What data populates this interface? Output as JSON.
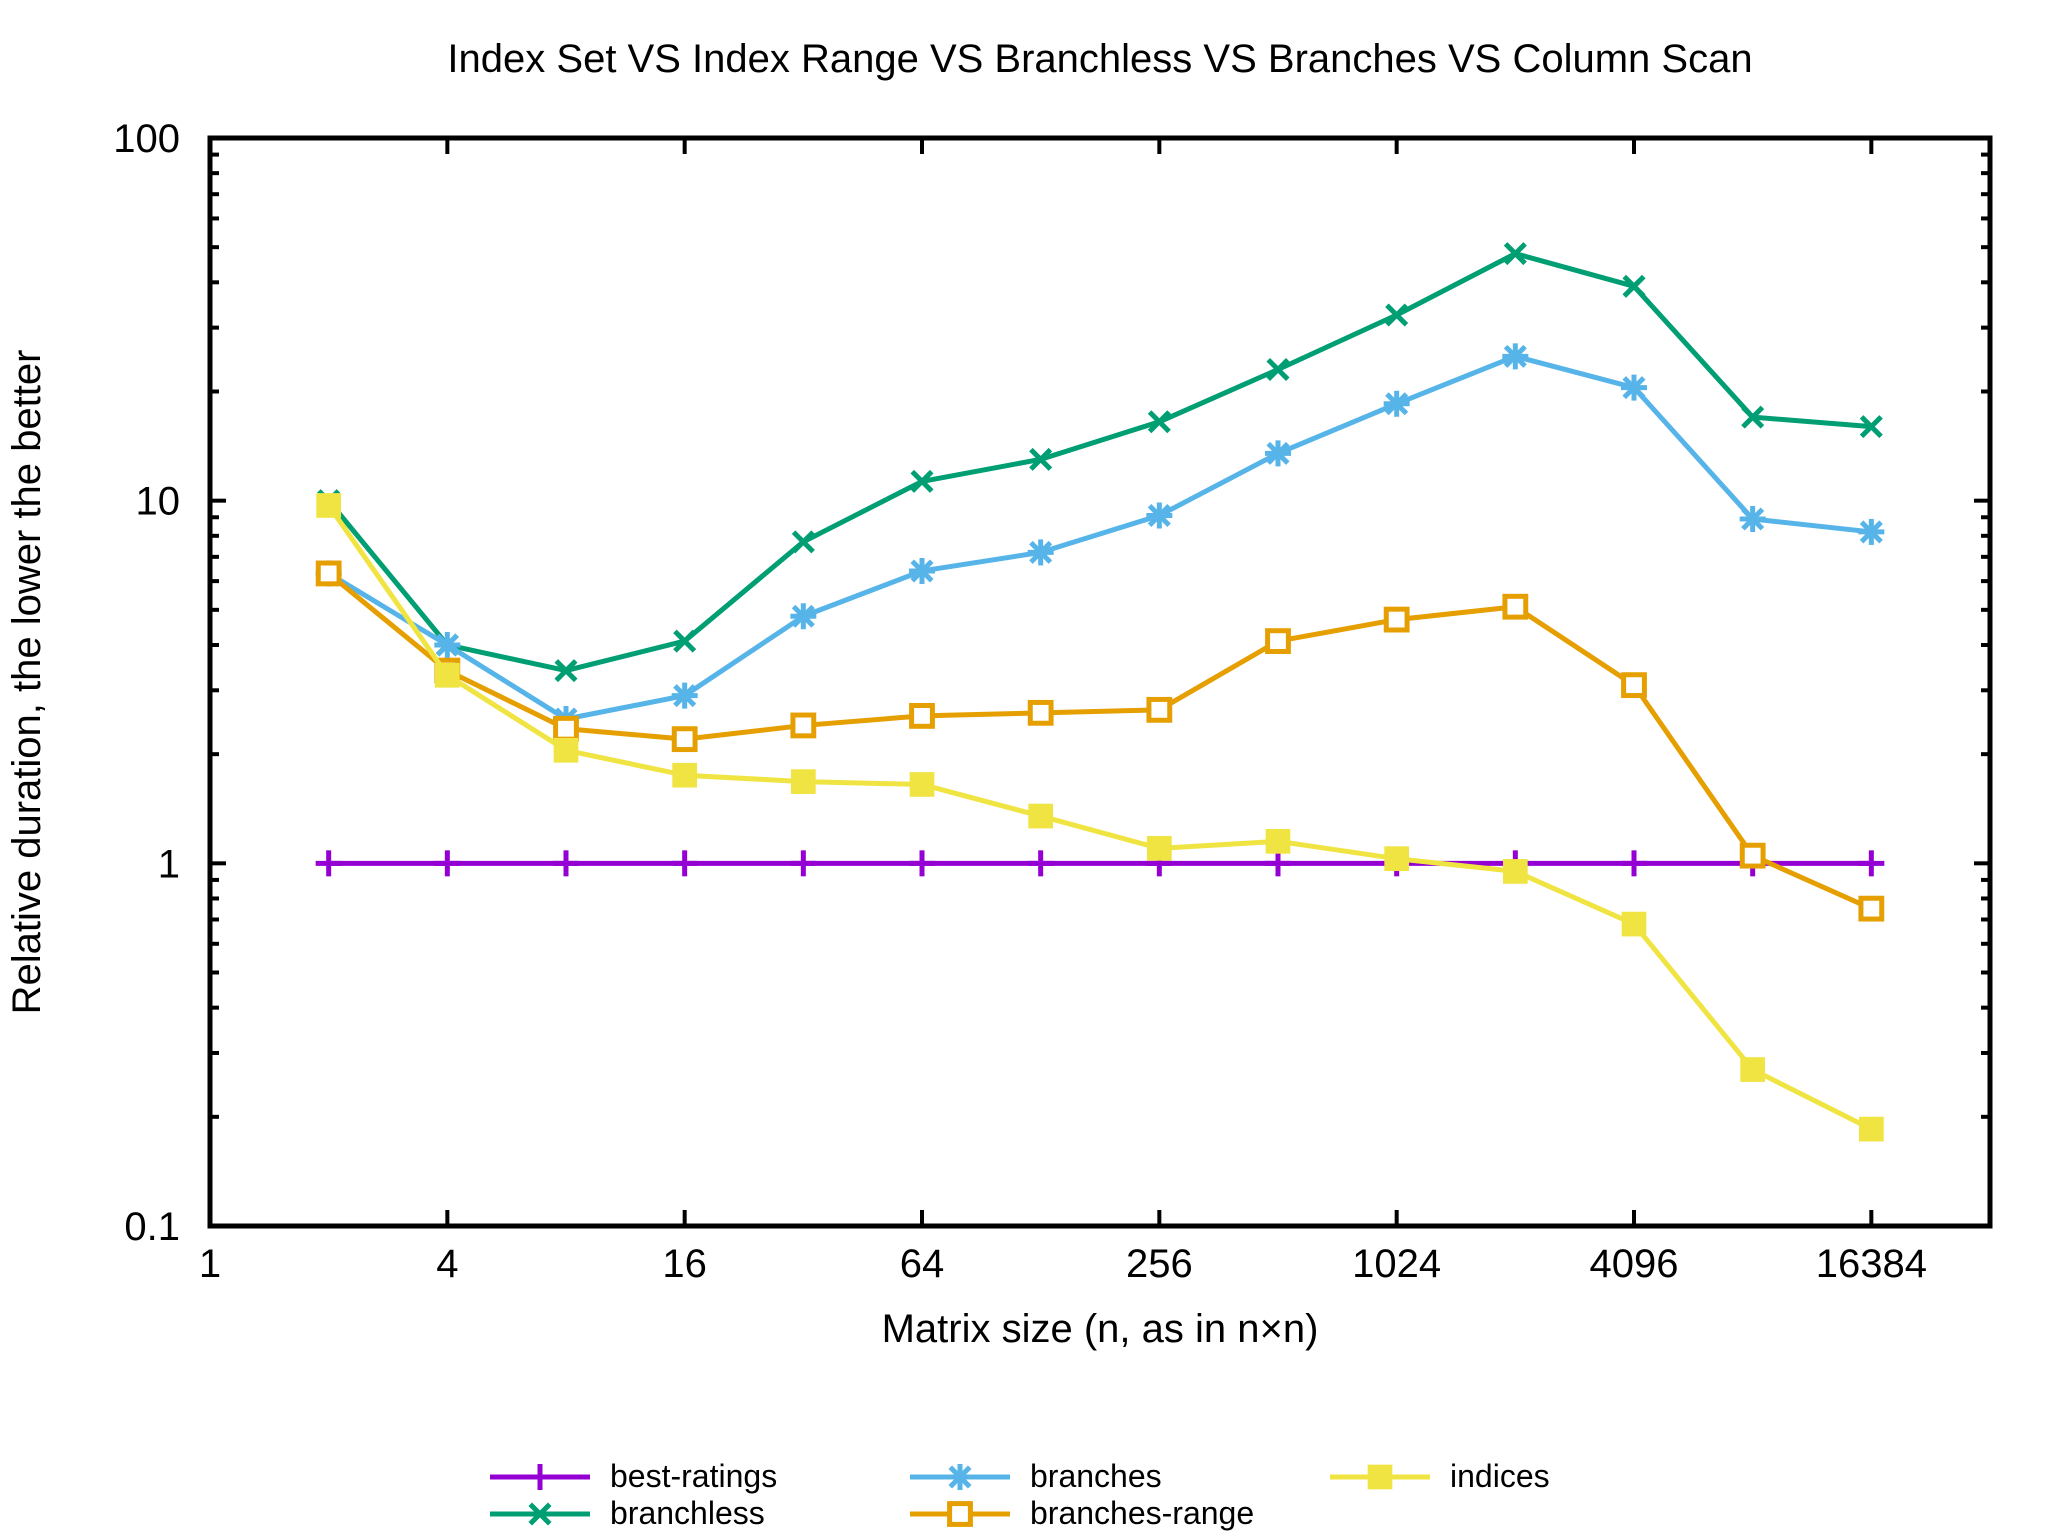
{
  "chart_data": {
    "type": "line",
    "title": "Index Set VS Index Range VS Branchless VS Branches VS Column Scan",
    "xlabel": "Matrix size (n, as in n×n)",
    "ylabel": "Relative duration, the lower the better",
    "x_scale": "log2",
    "y_scale": "log10",
    "xlim": [
      1,
      32768
    ],
    "ylim": [
      0.1,
      100
    ],
    "x_ticks": [
      1,
      4,
      16,
      64,
      256,
      1024,
      4096,
      16384
    ],
    "x_tick_labels": [
      "1",
      "4",
      "16",
      "64",
      "256",
      "1024",
      "4096",
      "16384"
    ],
    "y_ticks": [
      0.1,
      1,
      10,
      100
    ],
    "y_tick_labels": [
      "0.1",
      "1",
      "10",
      "100"
    ],
    "grid": false,
    "legend_position": "bottom",
    "x": [
      2,
      4,
      8,
      16,
      32,
      64,
      128,
      256,
      512,
      1024,
      2048,
      4096,
      8192,
      16384
    ],
    "series": [
      {
        "name": "best-ratings",
        "color": "#9400d3",
        "marker": "plus",
        "values": [
          1,
          1,
          1,
          1,
          1,
          1,
          1,
          1,
          1,
          1,
          1,
          1,
          1,
          1
        ]
      },
      {
        "name": "branchless",
        "color": "#009e73",
        "marker": "cross",
        "values": [
          10,
          4.0,
          3.4,
          4.1,
          7.7,
          11.3,
          13.0,
          16.5,
          23.0,
          32.5,
          48.0,
          39.0,
          17.0,
          16.0
        ]
      },
      {
        "name": "branches",
        "color": "#56b4e9",
        "marker": "star",
        "values": [
          6.3,
          4.0,
          2.5,
          2.9,
          4.8,
          6.4,
          7.2,
          9.1,
          13.5,
          18.5,
          25.0,
          20.5,
          8.9,
          8.2
        ]
      },
      {
        "name": "branches-range",
        "color": "#e69f00",
        "marker": "open-square",
        "values": [
          6.3,
          3.4,
          2.35,
          2.2,
          2.4,
          2.55,
          2.6,
          2.65,
          4.1,
          4.7,
          5.1,
          3.1,
          1.05,
          0.75
        ]
      },
      {
        "name": "indices",
        "color": "#f0e442",
        "marker": "filled-square",
        "values": [
          9.7,
          3.3,
          2.05,
          1.75,
          1.68,
          1.65,
          1.35,
          1.1,
          1.15,
          1.03,
          0.95,
          0.68,
          0.27,
          0.185
        ]
      }
    ]
  }
}
